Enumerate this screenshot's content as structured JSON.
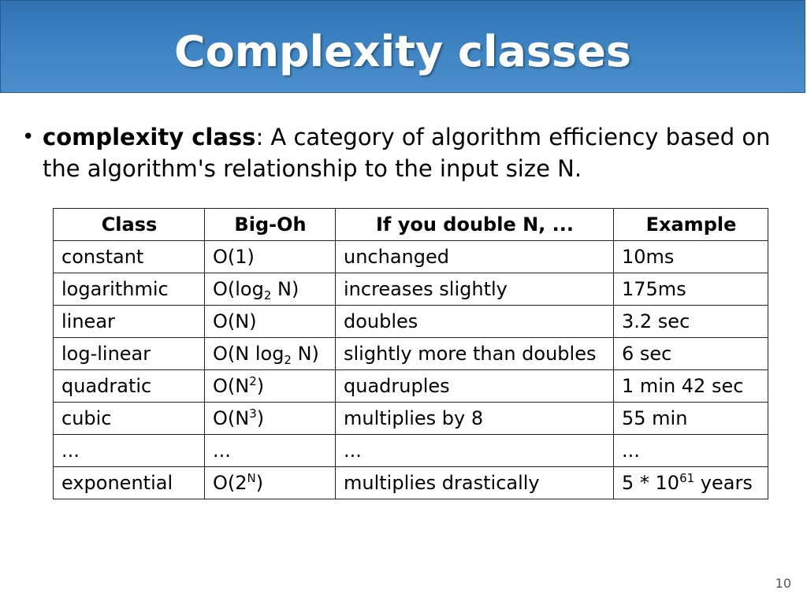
{
  "slide": {
    "title": "Complexity classes",
    "bullet": {
      "term": "complexity class",
      "definition": ": A category of algorithm efficiency based on the algorithm's relationship to the input size N."
    },
    "page_number": "10"
  },
  "table": {
    "headers": [
      "Class",
      "Big-Oh",
      "If you double N, ...",
      "Example"
    ],
    "rows": [
      {
        "cls": "constant",
        "bigoh_pre": "O(1)",
        "bigoh_script": "",
        "bigoh_post": "",
        "effect": "unchanged",
        "ex_pre": "10ms",
        "ex_sup": "",
        "ex_post": ""
      },
      {
        "cls": "logarithmic",
        "bigoh_pre": "O(log",
        "bigoh_script": "2",
        "bigoh_post": " N)",
        "effect": "increases slightly",
        "ex_pre": "175ms",
        "ex_sup": "",
        "ex_post": ""
      },
      {
        "cls": "linear",
        "bigoh_pre": "O(N)",
        "bigoh_script": "",
        "bigoh_post": "",
        "effect": "doubles",
        "ex_pre": "3.2 sec",
        "ex_sup": "",
        "ex_post": ""
      },
      {
        "cls": "log-linear",
        "bigoh_pre": "O(N log",
        "bigoh_script": "2",
        "bigoh_post": " N)",
        "effect": "slightly more than doubles",
        "ex_pre": "6 sec",
        "ex_sup": "",
        "ex_post": ""
      },
      {
        "cls": "quadratic",
        "bigoh_pre": "O(N",
        "bigoh_script": "2",
        "bigoh_post": ")",
        "effect": "quadruples",
        "ex_pre": "1 min 42 sec",
        "ex_sup": "",
        "ex_post": ""
      },
      {
        "cls": "cubic",
        "bigoh_pre": "O(N",
        "bigoh_script": "3",
        "bigoh_post": ")",
        "effect": "multiplies by 8",
        "ex_pre": "55 min",
        "ex_sup": "",
        "ex_post": ""
      },
      {
        "cls": "...",
        "bigoh_pre": "...",
        "bigoh_script": "",
        "bigoh_post": "",
        "effect": "...",
        "ex_pre": "...",
        "ex_sup": "",
        "ex_post": ""
      },
      {
        "cls": "exponential",
        "bigoh_pre": "O(2",
        "bigoh_script": "N",
        "bigoh_post": ")",
        "effect": "multiplies drastically",
        "ex_pre": "5 * 10",
        "ex_sup": "61",
        "ex_post": " years"
      }
    ]
  }
}
